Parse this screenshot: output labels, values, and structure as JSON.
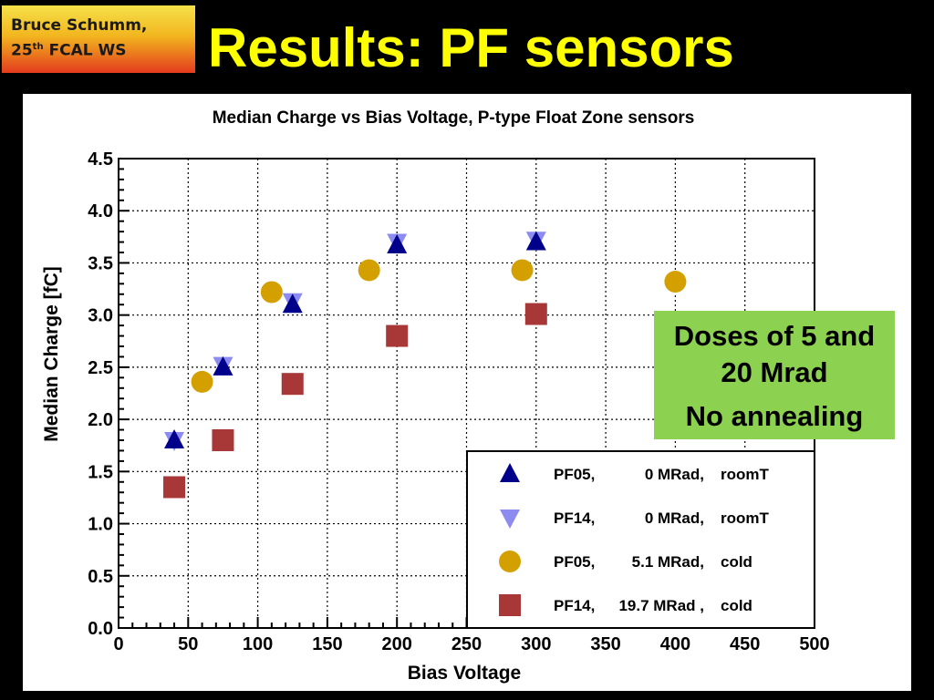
{
  "header": {
    "author_name": "Bruce Schumm,",
    "conference_num": "25",
    "conference_suffix": "th",
    "conference_name": "FCAL WS",
    "slide_title": "Results: PF sensors"
  },
  "callout": {
    "line1": "Doses of 5 and",
    "line2": "20 Mrad",
    "line3": "No annealing"
  },
  "colors": {
    "title": "#ffff00",
    "callout_bg": "#8cd14f",
    "pf05_0mrad": "#00008b",
    "pf14_0mrad": "#8c8cf0",
    "pf05_5mrad": "#d4a000",
    "pf14_19mrad": "#a83838"
  },
  "chart_data": {
    "type": "scatter",
    "title": "Median Charge vs Bias Voltage, P-type Float Zone sensors",
    "xlabel": "Bias Voltage",
    "ylabel": "Median Charge [fC]",
    "xlim": [
      0,
      500
    ],
    "ylim": [
      0,
      4.5
    ],
    "grid": true,
    "x_ticks": [
      "0",
      "50",
      "100",
      "150",
      "200",
      "250",
      "300",
      "350",
      "400",
      "450",
      "500"
    ],
    "y_ticks": [
      "0.0",
      "0.5",
      "1.0",
      "1.5",
      "2.0",
      "2.5",
      "3.0",
      "3.5",
      "4.0",
      "4.5"
    ],
    "legend_position": "bottom-right",
    "series": [
      {
        "name": "PF14, 0 MRad, roomT",
        "label_id": "PF14,",
        "label_dose": "0 MRad,",
        "label_cond": "roomT",
        "marker": "triangle-down",
        "color": "#8c8cf0",
        "x": [
          40,
          75,
          125,
          200,
          300
        ],
        "y": [
          1.8,
          2.52,
          3.13,
          3.7,
          3.72
        ]
      },
      {
        "name": "PF05, 0 MRad, roomT",
        "label_id": "PF05,",
        "label_dose": "0 MRad,",
        "label_cond": "roomT",
        "marker": "triangle-up",
        "color": "#00008b",
        "x": [
          40,
          75,
          125,
          200,
          300
        ],
        "y": [
          1.8,
          2.5,
          3.1,
          3.67,
          3.7
        ]
      },
      {
        "name": "PF05, 5.1 MRad, cold",
        "label_id": "PF05,",
        "label_dose": "5.1 MRad,",
        "label_cond": "cold",
        "marker": "circle",
        "color": "#d4a000",
        "x": [
          60,
          110,
          180,
          290,
          400
        ],
        "y": [
          2.36,
          3.22,
          3.43,
          3.43,
          3.32
        ]
      },
      {
        "name": "PF14, 19.7 MRad , cold",
        "label_id": "PF14,",
        "label_dose": "19.7 MRad ,",
        "label_cond": "cold",
        "marker": "square",
        "color": "#a83838",
        "x": [
          40,
          75,
          125,
          200,
          300
        ],
        "y": [
          1.35,
          1.8,
          2.34,
          2.8,
          3.01
        ]
      }
    ],
    "legend_order": [
      1,
      0,
      2,
      3
    ]
  }
}
